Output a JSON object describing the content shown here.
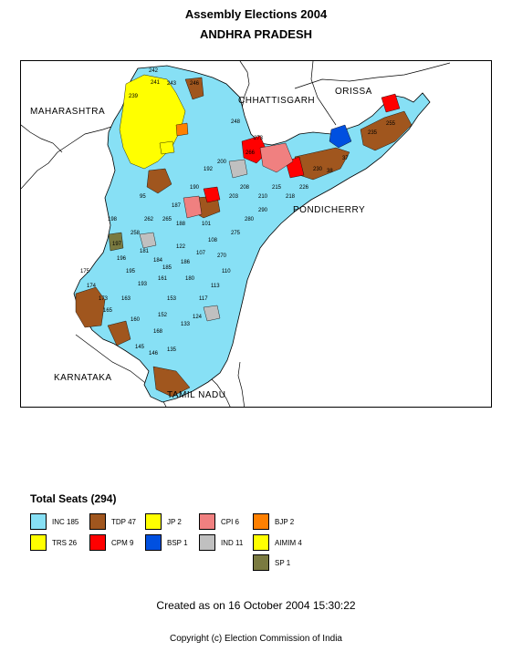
{
  "header": {
    "title": "Assembly Elections 2004",
    "state": "ANDHRA PRADESH"
  },
  "map": {
    "neighbours": {
      "maharashtra": "MAHARASHTRA",
      "chhattisgarh": "CHHATTISGARH",
      "orissa": "ORISSA",
      "karnataka": "KARNATAKA",
      "tamil_nadu": "TAMIL NADU",
      "pondicherry": "PONDICHERRY"
    },
    "seat_labels": [
      "242",
      "241",
      "243",
      "246",
      "239",
      "248",
      "273",
      "266",
      "38",
      "37",
      "95",
      "198",
      "197",
      "196",
      "195",
      "193",
      "188",
      "122",
      "101",
      "108",
      "107",
      "175",
      "174",
      "173",
      "160",
      "165",
      "168",
      "145",
      "146",
      "135",
      "133",
      "124",
      "117",
      "113",
      "110",
      "152",
      "153",
      "161",
      "163",
      "180",
      "181",
      "184",
      "185",
      "186",
      "187",
      "190",
      "192",
      "200",
      "203",
      "208",
      "210",
      "215",
      "218",
      "226",
      "230",
      "235",
      "255",
      "258",
      "262",
      "265",
      "270",
      "275",
      "280",
      "290"
    ]
  },
  "legend": {
    "title": "Total Seats (294)",
    "items": [
      {
        "label": "INC",
        "count": "185",
        "color": "#87e0f5"
      },
      {
        "label": "TRS",
        "count": "26",
        "color": "#ffff00"
      },
      {
        "label": "TDP",
        "count": "47",
        "color": "#a0561e"
      },
      {
        "label": "CPM",
        "count": "9",
        "color": "#ff0000"
      },
      {
        "label": "JP",
        "count": "2",
        "color": "#ffff00"
      },
      {
        "label": "BSP",
        "count": "1",
        "color": "#0050e0"
      },
      {
        "label": "CPI",
        "count": "6",
        "color": "#f08080"
      },
      {
        "label": "IND",
        "count": "11",
        "color": "#c0c0c0"
      },
      {
        "label": "BJP",
        "count": "2",
        "color": "#ff8000"
      },
      {
        "label": "AIMIM",
        "count": "4",
        "color": "#ffff00"
      },
      {
        "label": "SP",
        "count": "1",
        "color": "#7a7a40"
      }
    ]
  },
  "footer": {
    "created": "Created as on 16 October 2004 15:30:22",
    "copyright": "Copyright (c) Election Commission of India"
  }
}
